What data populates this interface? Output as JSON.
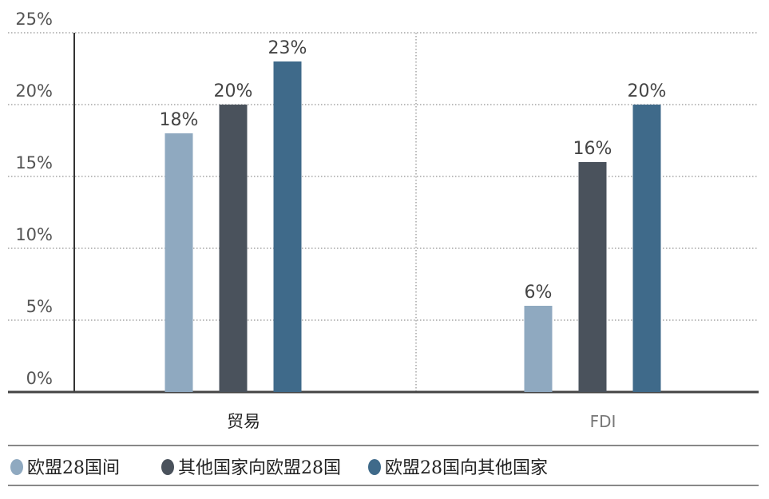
{
  "chart_data": {
    "type": "bar",
    "categories": [
      "贸易",
      "FDI"
    ],
    "series": [
      {
        "name": "欧盟28国间",
        "values": [
          18,
          6
        ],
        "labels": [
          "18%",
          "6%"
        ],
        "color": "#8fa9c0"
      },
      {
        "name": "其他国家向欧盟28国",
        "values": [
          20,
          16
        ],
        "labels": [
          "20%",
          "16%"
        ],
        "color": "#4a525c"
      },
      {
        "name": "欧盟28国向其他国家",
        "values": [
          23,
          20
        ],
        "labels": [
          "23%",
          "20%"
        ],
        "color": "#3f6a8a"
      }
    ],
    "yticks": [
      "0%",
      "5%",
      "10%",
      "15%",
      "20%",
      "25%"
    ],
    "ylim": [
      0,
      25
    ],
    "grid": true,
    "legend_position": "bottom"
  }
}
